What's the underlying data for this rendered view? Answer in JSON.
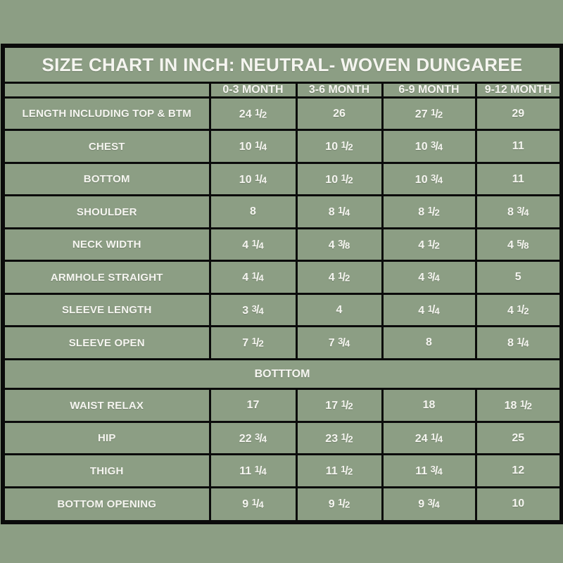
{
  "page": {
    "background_color": "#8C9E84",
    "border_color": "#0B0B0B",
    "text_color": "#F5F5F0"
  },
  "table": {
    "title": "SIZE CHART IN INCH: NEUTRAL- WOVEN DUNGAREE",
    "columns": [
      "",
      "0-3 MONTH",
      "3-6 MONTH",
      "6-9 MONTH",
      "9-12 MONTH"
    ],
    "rows": [
      {
        "label": "LENGTH INCLUDING TOP & BTM",
        "values": [
          "24 1/2",
          "26",
          "27 1/2",
          "29"
        ]
      },
      {
        "label": "CHEST",
        "values": [
          "10 1/4",
          "10 1/2",
          "10 3/4",
          "11"
        ]
      },
      {
        "label": "BOTTOM",
        "values": [
          "10 1/4",
          "10 1/2",
          "10 3/4",
          "11"
        ]
      },
      {
        "label": "SHOULDER",
        "values": [
          "8",
          "8 1/4",
          "8 1/2",
          "8 3/4"
        ]
      },
      {
        "label": "NECK WIDTH",
        "values": [
          "4 1/4",
          "4 3/8",
          "4 1/2",
          "4 5/8"
        ]
      },
      {
        "label": "ARMHOLE STRAIGHT",
        "values": [
          "4 1/4",
          "4 1/2",
          "4 3/4",
          "5"
        ]
      },
      {
        "label": "SLEEVE LENGTH",
        "values": [
          "3 3/4",
          "4",
          "4 1/4",
          "4 1/2"
        ]
      },
      {
        "label": "SLEEVE OPEN",
        "values": [
          "7 1/2",
          "7 3/4",
          "8",
          "8 1/4"
        ]
      },
      {
        "section": "BOTTTOM"
      },
      {
        "label": "WAIST RELAX",
        "values": [
          "17",
          "17 1/2",
          "18",
          "18 1/2"
        ]
      },
      {
        "label": "HIP",
        "values": [
          "22 3/4",
          "23 1/2",
          "24 1/4",
          "25"
        ]
      },
      {
        "label": "THIGH",
        "values": [
          "11 1/4",
          "11 1/2",
          "11 3/4",
          "12"
        ]
      },
      {
        "label": "BOTTOM OPENING",
        "values": [
          "9 1/4",
          "9 1/2",
          "9 3/4",
          "10"
        ]
      }
    ]
  }
}
